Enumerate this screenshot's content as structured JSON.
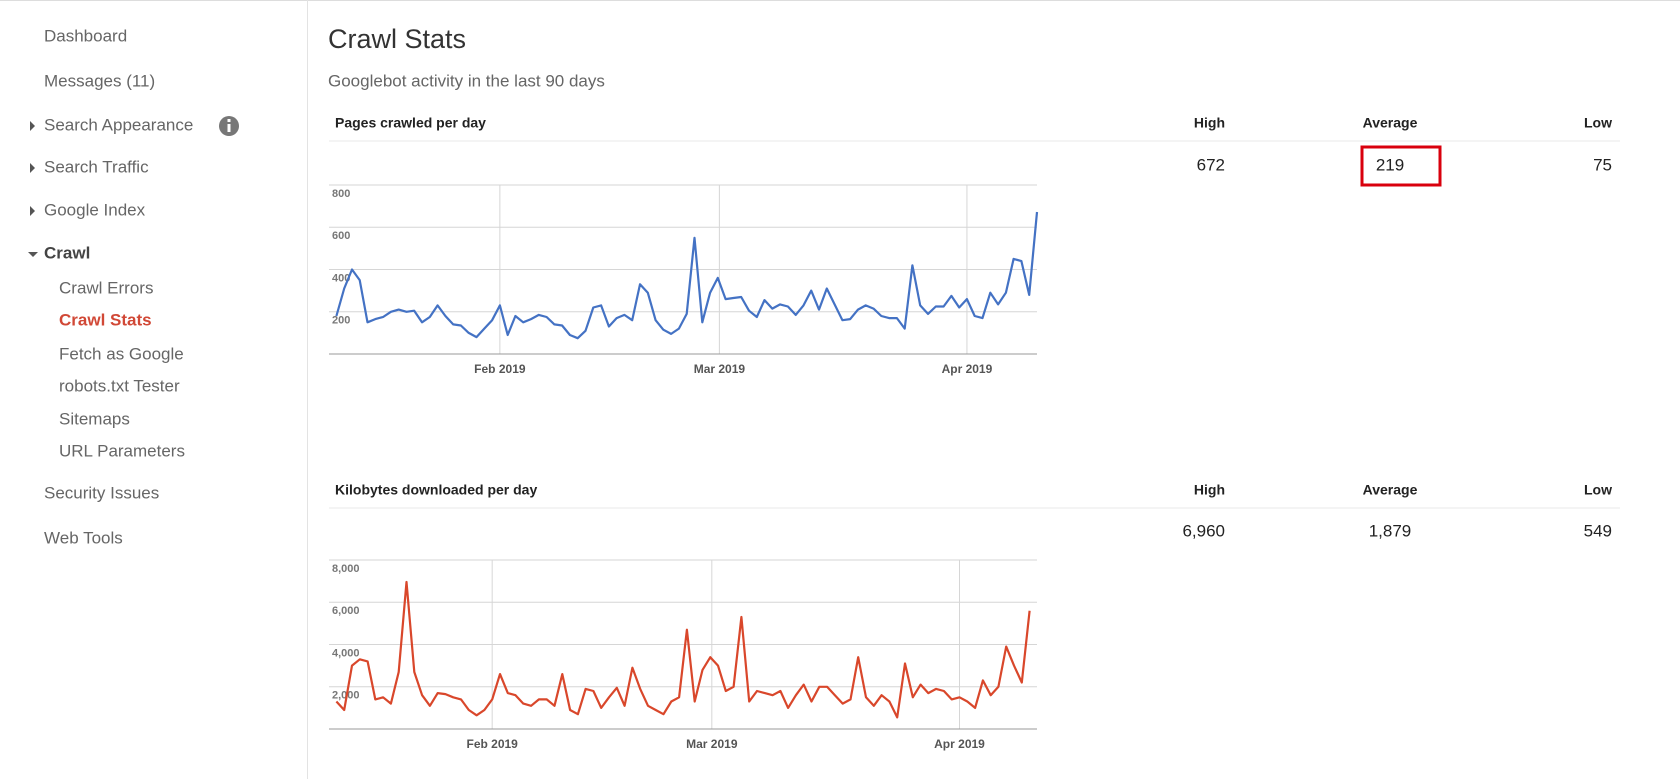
{
  "sidebar": {
    "items": [
      "Dashboard",
      "Messages (11)",
      "Search Appearance",
      "Search Traffic",
      "Google Index",
      "Crawl",
      "Crawl Errors",
      "Crawl Stats",
      "Fetch as Google",
      "robots.txt Tester",
      "Sitemaps",
      "URL Parameters",
      "Security Issues",
      "Web Tools"
    ]
  },
  "header": {
    "title": "Crawl Stats",
    "subtitle": "Googlebot activity in the last 90 days"
  },
  "chart_data": [
    {
      "type": "line",
      "title": "Pages crawled per day",
      "color": "#4472c4",
      "stats": {
        "labels": [
          "High",
          "Average",
          "Low"
        ],
        "values": [
          672,
          219,
          75
        ]
      },
      "values": [
        180,
        310,
        400,
        350,
        150,
        165,
        175,
        200,
        210,
        200,
        205,
        150,
        175,
        230,
        180,
        140,
        135,
        100,
        80,
        120,
        160,
        230,
        90,
        180,
        150,
        165,
        185,
        175,
        140,
        135,
        90,
        75,
        110,
        220,
        230,
        130,
        170,
        185,
        160,
        330,
        290,
        160,
        115,
        95,
        120,
        190,
        550,
        150,
        290,
        360,
        260,
        265,
        270,
        205,
        175,
        255,
        215,
        235,
        225,
        185,
        230,
        300,
        210,
        310,
        235,
        160,
        165,
        210,
        230,
        215,
        180,
        170,
        170,
        120,
        420,
        230,
        190,
        225,
        225,
        275,
        220,
        260,
        180,
        170,
        290,
        235,
        290,
        450,
        440,
        280,
        672
      ],
      "xlim": [
        -0.95,
        90
      ],
      "ylim": [
        0,
        800
      ],
      "yticks": [
        200,
        400,
        600,
        800
      ],
      "grid": true,
      "xticks": [
        {
          "value": 21,
          "label": "Feb 2019"
        },
        {
          "value": 49.2,
          "label": "Mar 2019"
        },
        {
          "value": 81,
          "label": "Apr 2019"
        }
      ]
    },
    {
      "type": "line",
      "title": "Kilobytes downloaded per day",
      "color": "#d9472b",
      "stats": {
        "labels": [
          "High",
          "Average",
          "Low"
        ],
        "values": [
          6960,
          1879,
          549
        ],
        "value_labels": [
          "6,960",
          "1,879",
          "549"
        ]
      },
      "values": [
        1300,
        900,
        3000,
        3300,
        3200,
        1400,
        1500,
        1200,
        2700,
        6960,
        2700,
        1600,
        1100,
        1700,
        1650,
        1500,
        1400,
        900,
        650,
        900,
        1400,
        2600,
        1700,
        1600,
        1200,
        1100,
        1400,
        1400,
        1100,
        2600,
        900,
        700,
        1900,
        1800,
        1000,
        1500,
        1950,
        1100,
        2900,
        1900,
        1100,
        900,
        700,
        1300,
        1500,
        4700,
        1300,
        2800,
        3400,
        3000,
        1800,
        2000,
        5300,
        1300,
        1800,
        1700,
        1600,
        1800,
        1000,
        1600,
        2100,
        1300,
        2000,
        2000,
        1600,
        1200,
        1400,
        3400,
        1500,
        1100,
        1600,
        1300,
        549,
        3100,
        1500,
        2100,
        1700,
        1900,
        1800,
        1400,
        1500,
        1300,
        1000,
        2300,
        1600,
        2000,
        3900,
        3000,
        2200,
        5600
      ],
      "xlim": [
        -0.95,
        89.95
      ],
      "ylim": [
        0,
        8000
      ],
      "grid": true,
      "yticks": [
        {
          "value": 2000,
          "label": "2,000"
        },
        {
          "value": 4000,
          "label": "4,000"
        },
        {
          "value": 6000,
          "label": "6,000"
        },
        {
          "value": 8000,
          "label": "8,000"
        }
      ],
      "xticks": [
        {
          "value": 20,
          "label": "Feb 2019"
        },
        {
          "value": 48.2,
          "label": "Mar 2019"
        },
        {
          "value": 80,
          "label": "Apr 2019"
        }
      ]
    }
  ]
}
